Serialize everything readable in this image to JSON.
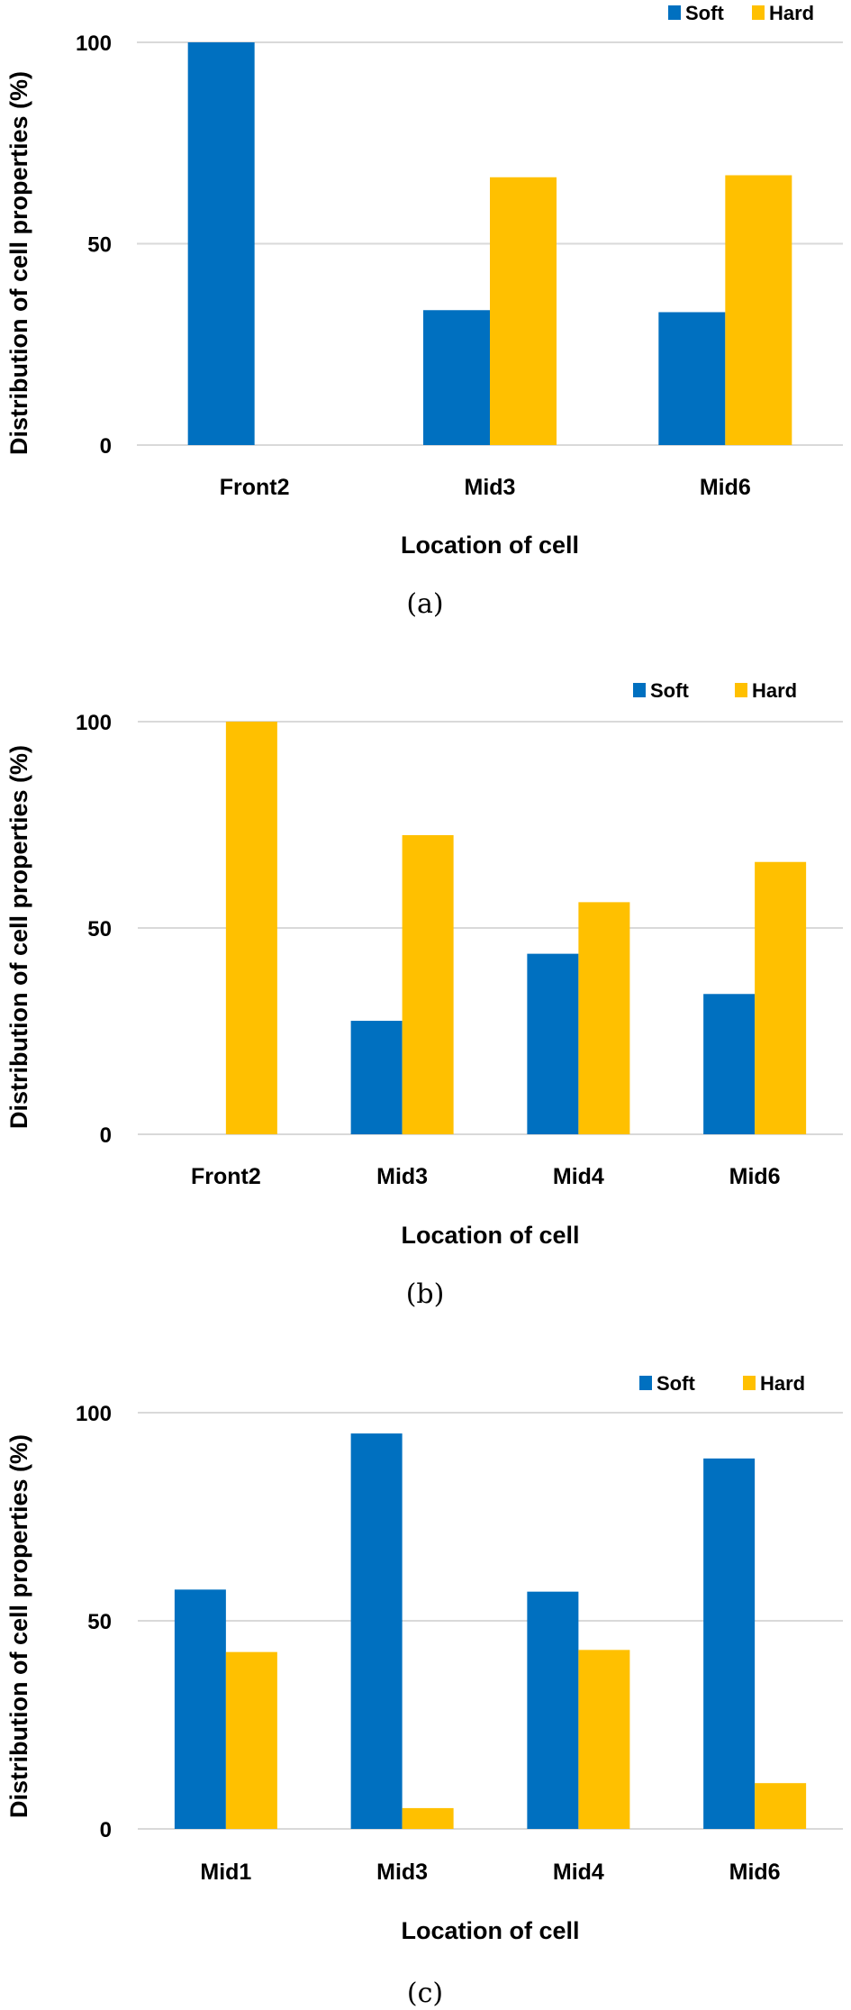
{
  "colors": {
    "soft": "#0070c0",
    "hard": "#ffc000",
    "grid": "#d9d9d9"
  },
  "chart_data": [
    {
      "type": "bar",
      "caption": "(a)",
      "title": "",
      "xlabel": "Location of cell",
      "ylabel": "Distribution of cell properties (%)",
      "ylim": [
        0,
        100
      ],
      "yticks": [
        0,
        50,
        100
      ],
      "grid": true,
      "legend_position": "top-right",
      "categories": [
        "Front2",
        "Mid3",
        "Mid6"
      ],
      "series": [
        {
          "name": "Soft",
          "values": [
            100,
            33.5,
            33
          ]
        },
        {
          "name": "Hard",
          "values": [
            0,
            66.5,
            67
          ]
        }
      ]
    },
    {
      "type": "bar",
      "caption": "(b)",
      "title": "",
      "xlabel": "Location of cell",
      "ylabel": "Distribution of cell properties (%)",
      "ylim": [
        0,
        100
      ],
      "yticks": [
        0,
        50,
        100
      ],
      "grid": true,
      "legend_position": "top-right",
      "categories": [
        "Front2",
        "Mid3",
        "Mid4",
        "Mid6"
      ],
      "series": [
        {
          "name": "Soft",
          "values": [
            0,
            27.5,
            43.75,
            34
          ]
        },
        {
          "name": "Hard",
          "values": [
            100,
            72.5,
            56.25,
            66
          ]
        }
      ]
    },
    {
      "type": "bar",
      "caption": "(c)",
      "title": "",
      "xlabel": "Location of cell",
      "ylabel": "Distribution of cell properties (%)",
      "ylim": [
        0,
        100
      ],
      "yticks": [
        0,
        50,
        100
      ],
      "grid": true,
      "legend_position": "top-right",
      "categories": [
        "Mid1",
        "Mid3",
        "Mid4",
        "Mid6"
      ],
      "series": [
        {
          "name": "Soft",
          "values": [
            57.5,
            95,
            57,
            89
          ]
        },
        {
          "name": "Hard",
          "values": [
            42.5,
            5,
            43,
            11
          ]
        }
      ]
    }
  ]
}
